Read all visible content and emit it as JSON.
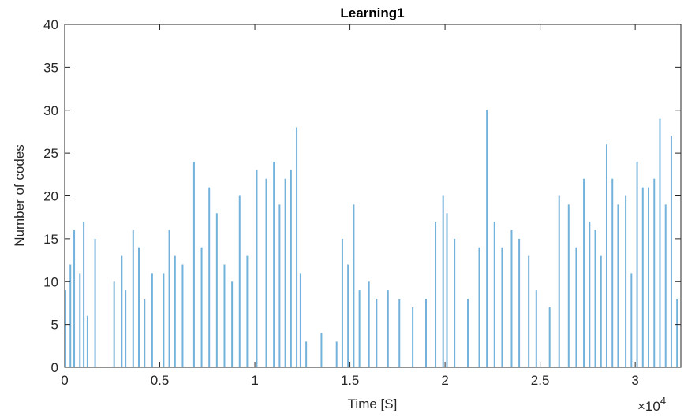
{
  "chart_data": {
    "type": "bar",
    "title": "Learning1",
    "xlabel": "Time [S]",
    "ylabel": "Number of codes",
    "x_exponent_label": "×10",
    "x_exponent_power": "4",
    "xlim": [
      0,
      32400
    ],
    "ylim": [
      0,
      40
    ],
    "xticks": [
      0,
      5000,
      10000,
      15000,
      20000,
      25000,
      30000
    ],
    "xtick_labels": [
      "0",
      "0.5",
      "1",
      "1.5",
      "2",
      "2.5",
      "3"
    ],
    "yticks": [
      0,
      5,
      10,
      15,
      20,
      25,
      30,
      35,
      40
    ],
    "ytick_labels": [
      "0",
      "5",
      "10",
      "15",
      "20",
      "25",
      "30",
      "35",
      "40"
    ],
    "grid": false,
    "bar_color": "#0072BD",
    "series": [
      {
        "x": [
          0,
          300,
          500,
          800,
          1000,
          1200,
          1600,
          2600,
          3000,
          3200,
          3600,
          3900,
          4200,
          4600,
          5200,
          5500,
          5800,
          6200,
          6800,
          7200,
          7600,
          8000,
          8400,
          8800,
          9200,
          9600,
          10100,
          10600,
          11000,
          11300,
          11600,
          11900,
          12200,
          12400,
          12700,
          13500,
          14300,
          14600,
          14900,
          15200,
          15500,
          16000,
          16400,
          17000,
          17600,
          18300,
          19000,
          19500,
          19900,
          20100,
          20500,
          21200,
          21800,
          22200,
          22600,
          23000,
          23500,
          23900,
          24400,
          24800,
          25500,
          26000,
          26500,
          26900,
          27300,
          27600,
          27900,
          28200,
          28500,
          28800,
          29100,
          29500,
          29800,
          30100,
          30400,
          30700,
          31000,
          31300,
          31600,
          31900,
          32200
        ],
        "values": [
          9,
          12,
          16,
          11,
          17,
          6,
          15,
          10,
          13,
          9,
          16,
          14,
          8,
          11,
          11,
          16,
          13,
          12,
          24,
          14,
          21,
          18,
          12,
          10,
          20,
          13,
          23,
          22,
          24,
          19,
          22,
          23,
          28,
          11,
          3,
          4,
          3,
          15,
          12,
          19,
          9,
          10,
          8,
          9,
          8,
          7,
          8,
          17,
          20,
          18,
          15,
          8,
          14,
          30,
          17,
          14,
          16,
          15,
          13,
          9,
          7,
          20,
          19,
          14,
          22,
          17,
          16,
          13,
          26,
          22,
          19,
          20,
          11,
          24,
          21,
          21,
          22,
          29,
          19,
          27,
          8
        ]
      }
    ]
  }
}
